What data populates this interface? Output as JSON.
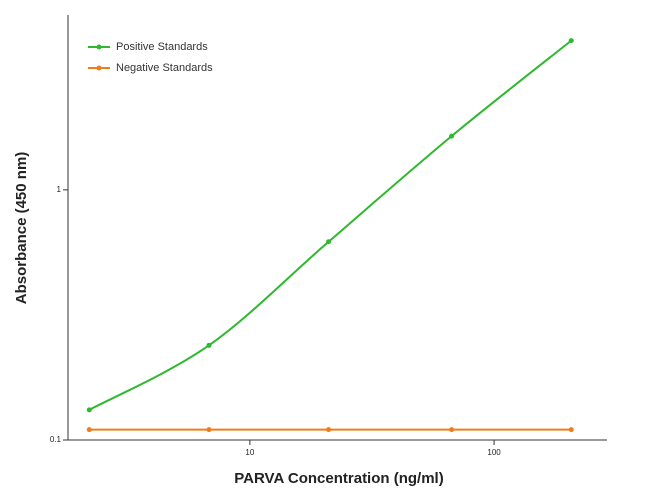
{
  "chart_data": {
    "type": "line",
    "x_label": "PARVA Concentration (ng/ml)",
    "y_label": "Absorbance (450 nm)",
    "x_scale": "log",
    "y_scale": "log",
    "xlim": [
      1.8,
      290
    ],
    "ylim": [
      0.1,
      5
    ],
    "xticks": [
      10,
      100
    ],
    "yticks": [
      0.1,
      1
    ],
    "legend": "upper-left",
    "x": [
      2.2,
      6.8,
      21,
      67,
      207
    ],
    "series": [
      {
        "name": "Positive Standards",
        "color": "#2eb82e",
        "values": [
          0.132,
          0.239,
          0.62,
          1.64,
          3.95
        ]
      },
      {
        "name": "Negative Standards",
        "color": "#f07d1a",
        "values": [
          0.11,
          0.11,
          0.11,
          0.11,
          0.11
        ]
      }
    ]
  }
}
